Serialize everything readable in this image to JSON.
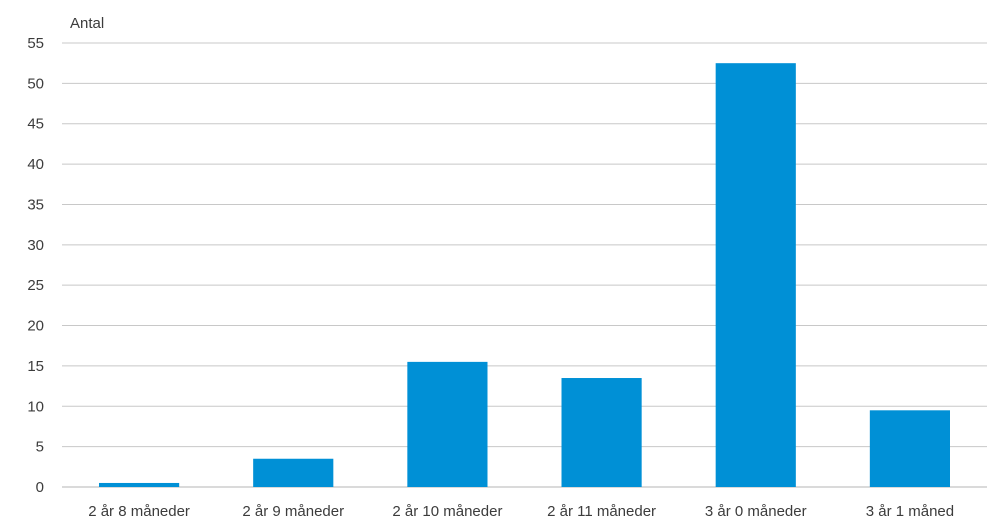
{
  "chart_data": {
    "type": "bar",
    "title": "",
    "ylabel": "Antal",
    "xlabel": "",
    "categories": [
      "2 år 8 måneder",
      "2 år 9 måneder",
      "2 år 10 måneder",
      "2 år 11 måneder",
      "3 år 0 måneder",
      "3 år 1 måned"
    ],
    "values": [
      0.5,
      3.5,
      15.5,
      13.5,
      52.5,
      9.5
    ],
    "ylim": [
      0,
      55
    ],
    "yticks": [
      0,
      5,
      10,
      15,
      20,
      25,
      30,
      35,
      40,
      45,
      50,
      55
    ],
    "grid": true,
    "legend": "none",
    "colors": {
      "bar": "#0090d6",
      "grid": "#c8c8c8",
      "axis": "#b4b4b4",
      "text": "#3c3c3c"
    }
  }
}
